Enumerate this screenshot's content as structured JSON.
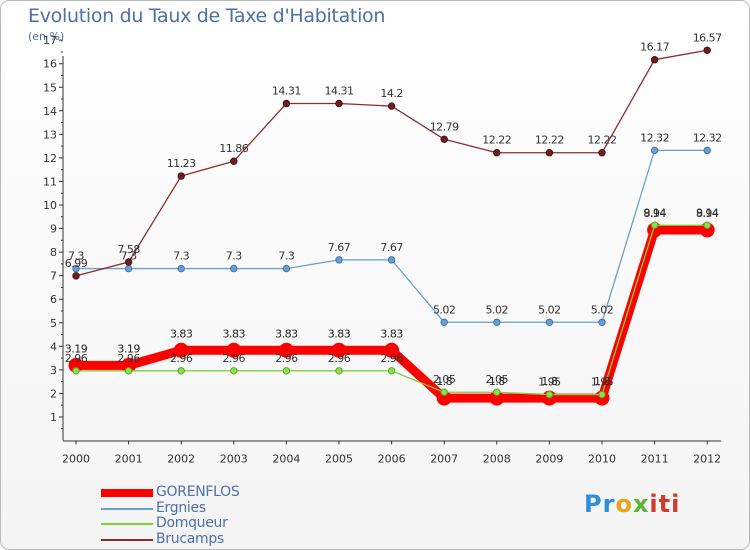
{
  "title": "Evolution du Taux de Taxe d'Habitation",
  "unit": "(en %)",
  "logo": "Proxiti",
  "chart_data": {
    "type": "line",
    "title": "Evolution du Taux de Taxe d'Habitation",
    "ylabel": "(en %)",
    "xlabel": "",
    "ylim": [
      0,
      17
    ],
    "grid": false,
    "legend": "bottom-left",
    "x": [
      "2000",
      "2001",
      "2002",
      "2003",
      "2004",
      "2005",
      "2006",
      "2007",
      "2008",
      "2009",
      "2010",
      "2011",
      "2012"
    ],
    "yticks": [
      "1",
      "2",
      "3",
      "4",
      "5",
      "6",
      "7",
      "8",
      "9",
      "10",
      "11",
      "12",
      "13",
      "14",
      "15",
      "16",
      "17"
    ],
    "series": [
      {
        "name": "GORENFLOS",
        "color": "#ff0000",
        "values": [
          3.19,
          3.19,
          3.83,
          3.83,
          3.83,
          3.83,
          3.83,
          1.8,
          1.8,
          1.8,
          1.8,
          8.94,
          8.94
        ],
        "labels": [
          "3.19",
          "3.19",
          "3.83",
          "3.83",
          "3.83",
          "3.83",
          "3.83",
          "1.8",
          "1.8",
          "1.8",
          "1.8",
          "8.94",
          "8.94"
        ]
      },
      {
        "name": "Ergnies",
        "color": "#6b9fd0",
        "values": [
          7.3,
          7.3,
          7.3,
          7.3,
          7.3,
          7.67,
          7.67,
          5.02,
          5.02,
          5.02,
          5.02,
          12.32,
          12.32
        ],
        "labels": [
          "7.3",
          "7.3",
          "7.3",
          "7.3",
          "7.3",
          "7.67",
          "7.67",
          "5.02",
          "5.02",
          "5.02",
          "5.02",
          "12.32",
          "12.32"
        ]
      },
      {
        "name": "Domqueur",
        "color": "#7ed03a",
        "values": [
          2.96,
          2.96,
          2.96,
          2.96,
          2.96,
          2.96,
          2.96,
          2.05,
          2.05,
          1.95,
          1.95,
          9.14,
          9.14
        ],
        "labels": [
          "2.96",
          "2.96",
          "2.96",
          "2.96",
          "2.96",
          "2.96",
          "2.96",
          "2.05",
          "2.05",
          "1.95",
          "1.95",
          "9.14",
          "9.14"
        ]
      },
      {
        "name": "Brucamps",
        "color": "#8b2d2d",
        "values": [
          6.99,
          7.58,
          11.23,
          11.86,
          14.31,
          14.31,
          14.2,
          12.79,
          12.22,
          12.22,
          12.22,
          16.17,
          16.57
        ],
        "labels": [
          "6.99",
          "7.58",
          "11.23",
          "11.86",
          "14.31",
          "14.31",
          "14.2",
          "12.79",
          "12.22",
          "12.22",
          "12.22",
          "16.17",
          "16.57"
        ]
      }
    ]
  }
}
